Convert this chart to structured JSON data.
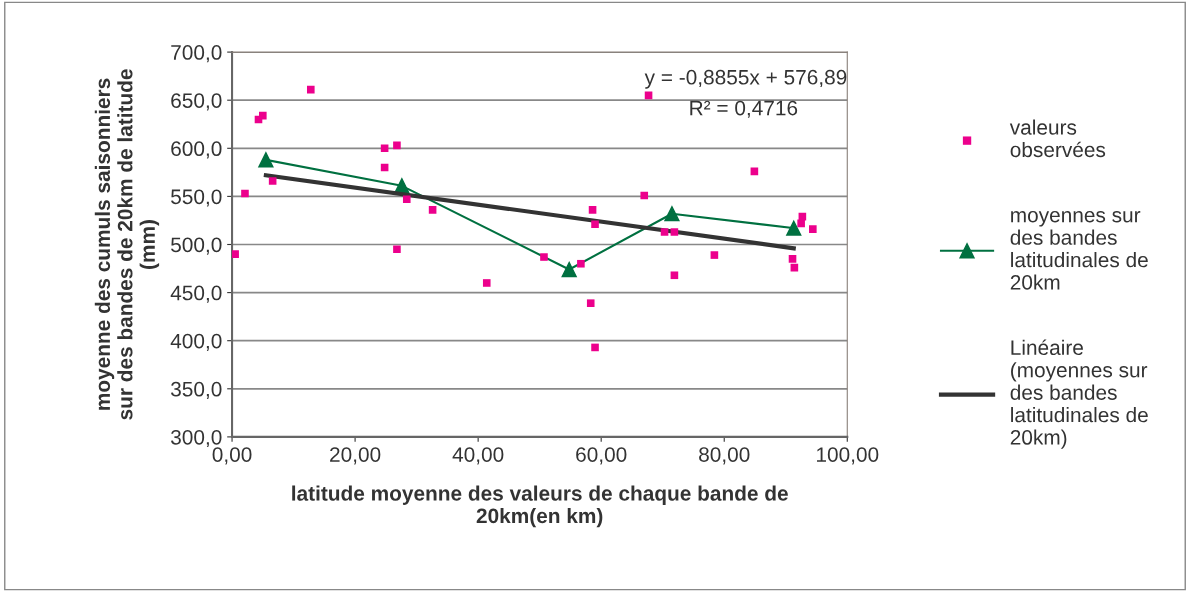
{
  "chart_data": {
    "type": "scatter",
    "xlabel": "latitude moyenne des valeurs de chaque bande de\n20km(en km)",
    "ylabel": "moyenne des cumuls saisonniers\nsur des bandes de 20km de latitude\n(mm)",
    "xlim": [
      0,
      100
    ],
    "ylim": [
      300,
      700
    ],
    "xticks": [
      {
        "value": 0,
        "label": "0,00"
      },
      {
        "value": 20,
        "label": "20,00"
      },
      {
        "value": 40,
        "label": "40,00"
      },
      {
        "value": 60,
        "label": "60,00"
      },
      {
        "value": 80,
        "label": "80,00"
      },
      {
        "value": 100,
        "label": "100,00"
      }
    ],
    "yticks": [
      {
        "value": 300,
        "label": "300,0"
      },
      {
        "value": 350,
        "label": "350,0"
      },
      {
        "value": 400,
        "label": "400,0"
      },
      {
        "value": 450,
        "label": "450,0"
      },
      {
        "value": 500,
        "label": "500,0"
      },
      {
        "value": 550,
        "label": "550,0"
      },
      {
        "value": 600,
        "label": "600,0"
      },
      {
        "value": 650,
        "label": "650,0"
      },
      {
        "value": 700,
        "label": "700,0"
      }
    ],
    "grid": "y",
    "legend": "right",
    "annotations": [
      "y = -0,8855x + 576,89",
      "R² = 0,4716"
    ],
    "series": [
      {
        "name": "valeurs\nobservées",
        "marker": "square",
        "color": "#ec008c",
        "x": [
          0.5,
          2.1,
          4.3,
          5.0,
          6.6,
          12.8,
          24.8,
          24.8,
          26.8,
          26.8,
          28.4,
          32.6,
          41.4,
          50.7,
          56.7,
          58.3,
          58.6,
          59.0,
          59.0,
          67.0,
          67.7,
          70.3,
          71.9,
          71.9,
          78.4,
          84.9,
          91.1,
          91.4,
          92.5,
          92.7,
          94.4
        ],
        "values": [
          490,
          553,
          630,
          634,
          566,
          661,
          600,
          580,
          603,
          495,
          547,
          536,
          460,
          487,
          480,
          439,
          536,
          521,
          393,
          551,
          655,
          513,
          513,
          468,
          489,
          576,
          485,
          476,
          522,
          529,
          516
        ]
      },
      {
        "name": "moyennes sur\ndes bandes\nlatitudinales de\n20km",
        "type": "line",
        "marker": "triangle",
        "color": "#007040",
        "x": [
          5.5,
          27.6,
          54.8,
          71.5,
          91.3
        ],
        "values": [
          588,
          561,
          474,
          532,
          517
        ]
      },
      {
        "name": "Linéaire\n(moyennes sur\ndes bandes\nlatitudinales de\n20km)",
        "type": "line",
        "marker": "none",
        "color": "#333333",
        "x": [
          5.5,
          91.3
        ],
        "values": [
          572.0,
          496.0
        ]
      }
    ]
  }
}
